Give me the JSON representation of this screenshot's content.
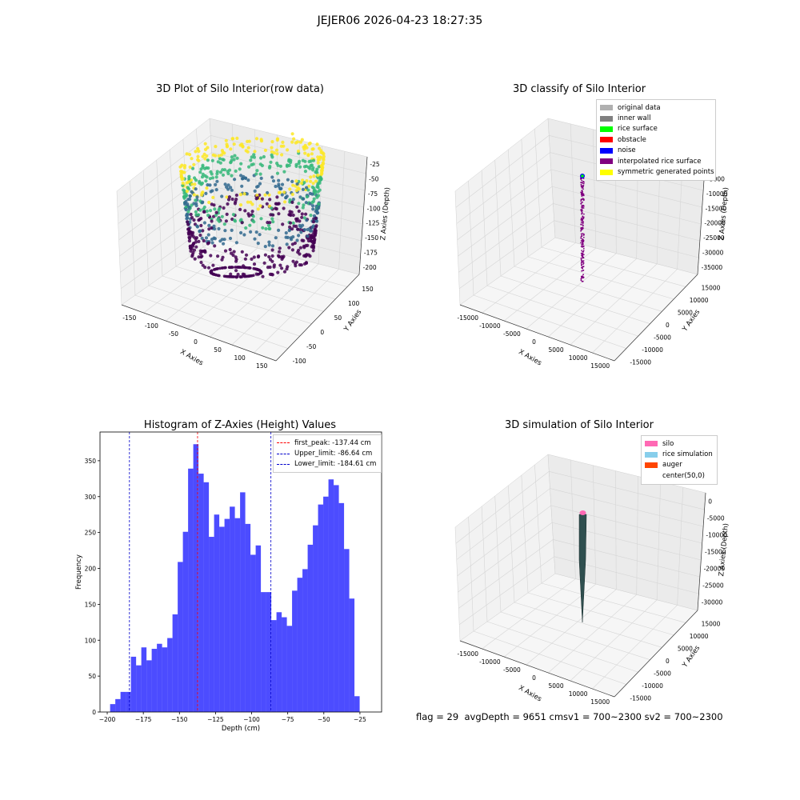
{
  "suptitle": "JEJER06 2026-04-23 18:27:35",
  "status": {
    "flag": "flag = 29",
    "avg": "avgDepth = 9651 cmsv1 = 700~2300",
    "sv2": "sv2 = 700~2300"
  },
  "chart_data": [
    {
      "type": "scatter3d",
      "title": "3D Plot of Silo Interior(row data)",
      "xlabel": "X Axies",
      "ylabel": "Y Axies",
      "zlabel": "Z Axies (Depth)",
      "xticks": [
        "-150",
        "-100",
        "-50",
        "0",
        "50",
        "100",
        "150"
      ],
      "yticks": [
        "-100",
        "-50",
        "0",
        "50",
        "100",
        "150"
      ],
      "zticks": [
        "-25",
        "-50",
        "-75",
        "-100",
        "-125",
        "-150",
        "-175",
        "-200"
      ],
      "colormap": [
        "#440154",
        "#31688e",
        "#35b779",
        "#fde725"
      ]
    },
    {
      "type": "scatter3d",
      "title": "3D classify of Silo Interior",
      "xlabel": "X Axies",
      "ylabel": "Y Axies",
      "zlabel": "Z Axies (Depth)",
      "xticks": [
        "-15000",
        "-10000",
        "-5000",
        "0",
        "5000",
        "10000",
        "15000"
      ],
      "yticks": [
        "-15000",
        "-10000",
        "-5000",
        "0",
        "5000",
        "10000",
        "15000"
      ],
      "zticks": [
        "0",
        "-5000",
        "-10000",
        "-15000",
        "-20000",
        "-25000",
        "-30000",
        "-35000"
      ],
      "legend": [
        {
          "label": "original data",
          "color": "#b0b0b0"
        },
        {
          "label": "inner wall",
          "color": "#808080"
        },
        {
          "label": "rice surface",
          "color": "#00ff00"
        },
        {
          "label": "obstacle",
          "color": "#ff0000"
        },
        {
          "label": "noise",
          "color": "#0000ff"
        },
        {
          "label": "interpolated rice surface",
          "color": "#800080"
        },
        {
          "label": "symmetric generated points",
          "color": "#ffff00"
        }
      ]
    },
    {
      "type": "bar",
      "title": "Histogram of Z-Axies (Height) Values",
      "xlabel": "Depth (cm)",
      "ylabel": "Frequency",
      "xlim": [
        -205,
        -10
      ],
      "ylim": [
        0,
        390
      ],
      "xticks": [
        -200,
        -175,
        -150,
        -125,
        -100,
        -75,
        -50,
        -25
      ],
      "yticks": [
        0,
        50,
        100,
        150,
        200,
        250,
        300,
        350
      ],
      "bin_start": -198,
      "bin_width": 3.6,
      "values": [
        11,
        18,
        28,
        28,
        77,
        65,
        90,
        72,
        88,
        95,
        90,
        103,
        136,
        209,
        251,
        339,
        373,
        332,
        320,
        244,
        275,
        258,
        269,
        286,
        270,
        306,
        262,
        219,
        232,
        167,
        167,
        128,
        139,
        132,
        120,
        169,
        187,
        199,
        233,
        260,
        289,
        300,
        324,
        316,
        291,
        227,
        158,
        22
      ],
      "color": "#0000ff",
      "lines": [
        {
          "label": "first_peak: -137.44 cm",
          "x": -137.44,
          "color": "#ff0000"
        },
        {
          "label": "Upper_limit: -86.64 cm",
          "x": -86.64,
          "color": "#0000cc"
        },
        {
          "label": "Lower_limit: -184.61 cm",
          "x": -184.61,
          "color": "#0000cc"
        }
      ]
    },
    {
      "type": "surface3d",
      "title": "3D simulation of Silo Interior",
      "xlabel": "X Axies",
      "ylabel": "Y Axies",
      "zlabel": "Z Axies (Depth)",
      "xticks": [
        "-15000",
        "-10000",
        "-5000",
        "0",
        "5000",
        "10000",
        "15000"
      ],
      "yticks": [
        "-15000",
        "-10000",
        "-5000",
        "0",
        "5000",
        "10000",
        "15000"
      ],
      "zticks": [
        "0",
        "-5000",
        "-10000",
        "-15000",
        "-20000",
        "-25000",
        "-30000"
      ],
      "legend": [
        {
          "label": "silo",
          "color": "#ff69b4"
        },
        {
          "label": "rice simulation",
          "color": "#87ceeb"
        },
        {
          "label": "auger",
          "color": "#ff4500"
        },
        {
          "label": "center(50,0)",
          "color": "#ffffff"
        }
      ]
    }
  ]
}
